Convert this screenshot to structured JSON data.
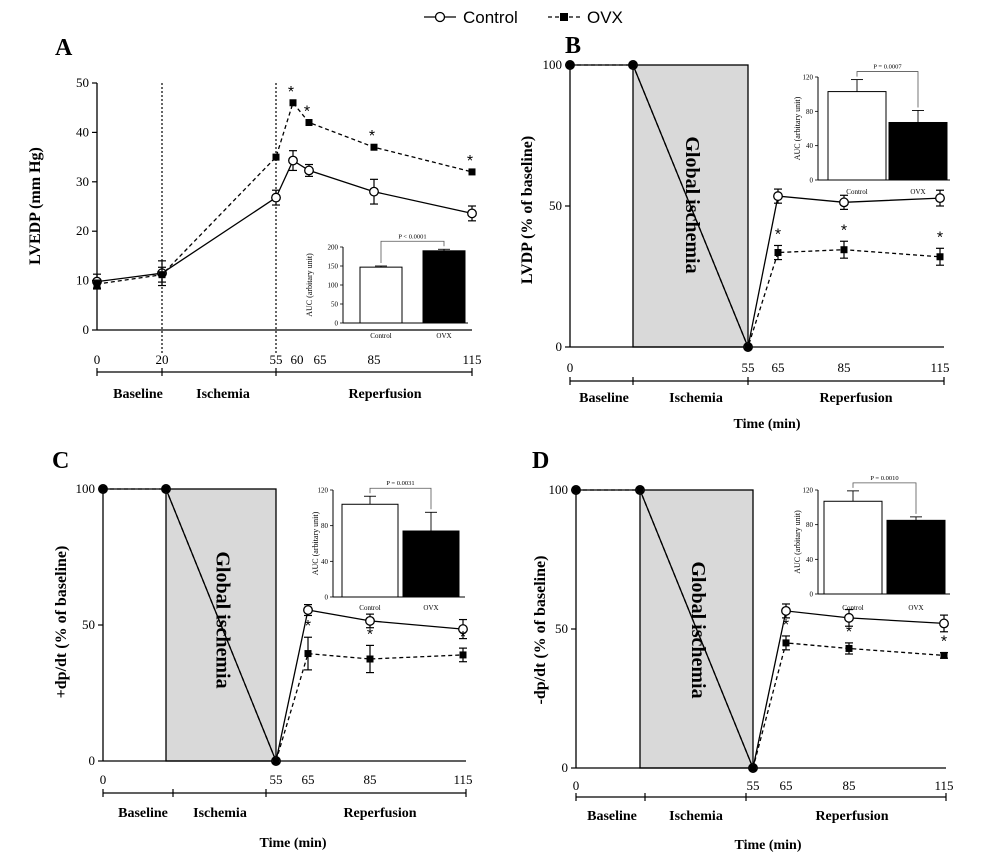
{
  "legend": {
    "control_label": "Control",
    "ovx_label": "OVX"
  },
  "chart_data": [
    {
      "panel": "A",
      "type": "line",
      "ylabel": "LVEDP (mm Hg)",
      "xlabel": "",
      "ylim": [
        0,
        50
      ],
      "yticks": [
        0,
        10,
        20,
        30,
        40,
        50
      ],
      "xtick_labels": [
        "0",
        "20",
        "55",
        "60",
        "65",
        "85",
        "115"
      ],
      "phases": [
        "Baseline",
        "Ischemia",
        "Reperfusion"
      ],
      "series": [
        {
          "name": "Control",
          "x": [
            0,
            20,
            55,
            60,
            65,
            85,
            115
          ],
          "y": [
            9.8,
            11.5,
            26.8,
            34.3,
            32.3,
            28.0,
            23.6
          ],
          "err": [
            1.5,
            2.5,
            1.5,
            2.0,
            1.2,
            2.5,
            1.5
          ]
        },
        {
          "name": "OVX",
          "x": [
            0,
            20,
            55,
            60,
            65,
            85,
            115
          ],
          "y": [
            9.3,
            11.2,
            35.0,
            46.0,
            42.0,
            37.0,
            32.0
          ],
          "err": [
            0.8,
            1.5,
            0,
            0,
            0,
            0,
            0
          ]
        }
      ],
      "significant": [
        60,
        65,
        85,
        115
      ],
      "sig_marker": "*",
      "inset": {
        "type": "bar",
        "ylabel": "AUC (arbitary unit)",
        "categories": [
          "Control",
          "OVX"
        ],
        "values": [
          147,
          190
        ],
        "errors": [
          3,
          4
        ],
        "ylim": [
          0,
          200
        ],
        "yticks": [
          0,
          50,
          100,
          150,
          200
        ],
        "p_value": "P < 0.0001"
      }
    },
    {
      "panel": "B",
      "type": "line",
      "ylabel": "LVDP (% of baseline)",
      "xlabel": "Time (min)",
      "ylim": [
        0,
        100
      ],
      "yticks": [
        0,
        50,
        100
      ],
      "xtick_labels": [
        "0",
        "55",
        "65",
        "85",
        "115"
      ],
      "phases": [
        "Baseline",
        "Ischemia",
        "Reperfusion"
      ],
      "ischemia_label": "Global ischemia",
      "series": [
        {
          "name": "Control",
          "x": [
            0,
            20,
            55,
            65,
            85,
            115
          ],
          "y": [
            100,
            100,
            0,
            53.5,
            51.3,
            52.8
          ],
          "err": [
            0,
            0,
            0,
            2.5,
            2.5,
            2.8
          ]
        },
        {
          "name": "OVX",
          "x": [
            0,
            20,
            55,
            65,
            85,
            115
          ],
          "y": [
            100,
            100,
            0,
            33.5,
            34.5,
            32.0
          ],
          "err": [
            0,
            0,
            0,
            2.5,
            3.0,
            3.0
          ]
        }
      ],
      "significant": [
        65,
        85,
        115
      ],
      "sig_marker": "*",
      "inset": {
        "type": "bar",
        "ylabel": "AUC (arbitary unit)",
        "categories": [
          "Control",
          "OVX"
        ],
        "values": [
          103,
          67
        ],
        "errors": [
          14,
          14
        ],
        "ylim": [
          0,
          120
        ],
        "yticks": [
          0,
          40,
          80,
          120
        ],
        "p_value": "P = 0.0007"
      }
    },
    {
      "panel": "C",
      "type": "line",
      "ylabel": "+dp/dt (% of baseline)",
      "xlabel": "Time (min)",
      "ylim": [
        0,
        100
      ],
      "yticks": [
        0,
        50,
        100
      ],
      "xtick_labels": [
        "0",
        "55",
        "65",
        "85",
        "115"
      ],
      "phases": [
        "Baseline",
        "Ischemia",
        "Reperfusion"
      ],
      "ischemia_label": "Global ischemia",
      "series": [
        {
          "name": "Control",
          "x": [
            0,
            20,
            55,
            65,
            85,
            115
          ],
          "y": [
            100,
            100,
            0,
            55.5,
            51.5,
            48.5
          ],
          "err": [
            0,
            0,
            0,
            2.0,
            2.5,
            3.5
          ]
        },
        {
          "name": "OVX",
          "x": [
            0,
            20,
            55,
            65,
            85,
            115
          ],
          "y": [
            100,
            100,
            0,
            39.5,
            37.5,
            39.0
          ],
          "err": [
            0,
            0,
            0,
            6.0,
            5.0,
            2.5
          ]
        }
      ],
      "significant": [
        65,
        85,
        115
      ],
      "sig_marker": "*",
      "inset": {
        "type": "bar",
        "ylabel": "AUC (arbitary unit)",
        "categories": [
          "Control",
          "OVX"
        ],
        "values": [
          104,
          74
        ],
        "errors": [
          9,
          21
        ],
        "ylim": [
          0,
          120
        ],
        "yticks": [
          0,
          40,
          80,
          120
        ],
        "p_value": "P = 0.0031"
      }
    },
    {
      "panel": "D",
      "type": "line",
      "ylabel": "-dp/dt (% of baseline)",
      "xlabel": "Time (min)",
      "ylim": [
        0,
        100
      ],
      "yticks": [
        0,
        50,
        100
      ],
      "xtick_labels": [
        "0",
        "55",
        "65",
        "85",
        "115"
      ],
      "phases": [
        "Baseline",
        "Ischemia",
        "Reperfusion"
      ],
      "ischemia_label": "Global ischemia",
      "series": [
        {
          "name": "Control",
          "x": [
            0,
            20,
            55,
            65,
            85,
            115
          ],
          "y": [
            100,
            100,
            0,
            56.5,
            54.0,
            52.0
          ],
          "err": [
            0,
            0,
            0,
            2.5,
            3.0,
            3.0
          ]
        },
        {
          "name": "OVX",
          "x": [
            0,
            20,
            55,
            65,
            85,
            115
          ],
          "y": [
            100,
            100,
            0,
            45.0,
            43.0,
            40.5
          ],
          "err": [
            0,
            0,
            0,
            2.5,
            2.0,
            1.0
          ]
        }
      ],
      "significant": [
        65,
        85,
        115
      ],
      "sig_marker": "*",
      "inset": {
        "type": "bar",
        "ylabel": "AUC (arbitary unit)",
        "categories": [
          "Control",
          "OVX"
        ],
        "values": [
          107,
          85
        ],
        "errors": [
          12,
          4
        ],
        "ylim": [
          0,
          120
        ],
        "yticks": [
          0,
          40,
          80,
          120
        ],
        "p_value": "P = 0.0010"
      }
    }
  ]
}
